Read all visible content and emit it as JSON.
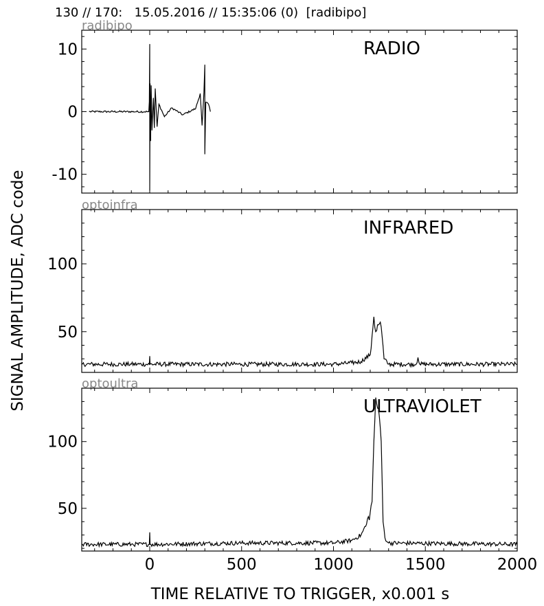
{
  "header": {
    "text": "130 // 170:   15.05.2016 // 15:35:06 (0)  [radibipo]"
  },
  "figure": {
    "ylabel": "SIGNAL AMPLITUDE,  ADC code",
    "xlabel": "TIME RELATIVE TO TRIGGER,   x0.001 s",
    "xticks": [
      0,
      500,
      1000,
      1500,
      2000
    ],
    "line_color": "#000000",
    "channel_name_color": "#888888"
  },
  "chart_data": [
    {
      "type": "line",
      "channel": "radibipo",
      "title": "RADIO",
      "xlim": [
        -370,
        2000
      ],
      "ylim": [
        -13,
        13
      ],
      "yticks": [
        -10,
        0,
        10
      ],
      "series": [
        {
          "values": [
            [
              -330,
              0
            ],
            [
              -5,
              0
            ],
            [
              -2,
              1.6
            ],
            [
              0,
              10.8
            ],
            [
              0,
              -12.6
            ],
            [
              2,
              4.5
            ],
            [
              5,
              -4.7
            ],
            [
              8,
              4.2
            ],
            [
              12,
              -3
            ],
            [
              20,
              2.2
            ],
            [
              25,
              -2.6
            ],
            [
              30,
              3.7
            ],
            [
              40,
              -2.4
            ],
            [
              50,
              1.2
            ],
            [
              80,
              -0.8
            ],
            [
              120,
              0.6
            ],
            [
              180,
              -0.5
            ],
            [
              250,
              0.5
            ],
            [
              275,
              2.9
            ],
            [
              285,
              -2.2
            ],
            [
              295,
              3.1
            ],
            [
              300,
              7.5
            ],
            [
              300,
              -6.8
            ],
            [
              305,
              1.5
            ],
            [
              320,
              1.2
            ],
            [
              330,
              0
            ]
          ]
        }
      ]
    },
    {
      "type": "line",
      "channel": "optoinfra",
      "title": "INFRARED",
      "xlim": [
        -370,
        2000
      ],
      "ylim": [
        20,
        140
      ],
      "yticks": [
        50,
        100
      ],
      "series": [
        {
          "values": [
            [
              -370,
              26
            ],
            [
              -100,
              26
            ],
            [
              -2,
              26
            ],
            [
              0,
              32
            ],
            [
              2,
              26
            ],
            [
              500,
              26
            ],
            [
              1000,
              26
            ],
            [
              1100,
              27
            ],
            [
              1150,
              28
            ],
            [
              1200,
              33
            ],
            [
              1210,
              47
            ],
            [
              1220,
              61
            ],
            [
              1230,
              50
            ],
            [
              1245,
              55
            ],
            [
              1255,
              57
            ],
            [
              1265,
              46
            ],
            [
              1275,
              30
            ],
            [
              1300,
              26
            ],
            [
              1450,
              26
            ],
            [
              1460,
              31
            ],
            [
              1470,
              26
            ],
            [
              2000,
              26
            ]
          ]
        }
      ]
    },
    {
      "type": "line",
      "channel": "optoultra",
      "title": "ULTRAVIOLET",
      "xlim": [
        -370,
        2000
      ],
      "ylim": [
        18,
        140
      ],
      "yticks": [
        50,
        100
      ],
      "series": [
        {
          "values": [
            [
              -370,
              23
            ],
            [
              -100,
              23
            ],
            [
              -2,
              23
            ],
            [
              0,
              32
            ],
            [
              2,
              23
            ],
            [
              500,
              24
            ],
            [
              1000,
              24
            ],
            [
              1100,
              26
            ],
            [
              1150,
              30
            ],
            [
              1180,
              38
            ],
            [
              1200,
              47
            ],
            [
              1210,
              55
            ],
            [
              1220,
              100
            ],
            [
              1230,
              133
            ],
            [
              1240,
              125
            ],
            [
              1250,
              118
            ],
            [
              1260,
              100
            ],
            [
              1270,
              40
            ],
            [
              1280,
              28
            ],
            [
              1300,
              24
            ],
            [
              2000,
              23
            ]
          ]
        }
      ]
    }
  ]
}
